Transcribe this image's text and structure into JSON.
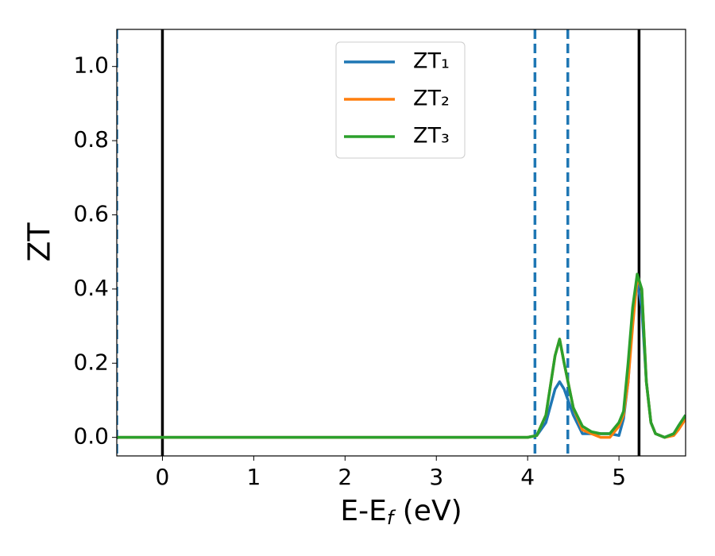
{
  "chart_data": {
    "type": "line",
    "xlabel": [
      "E-E",
      "f",
      " (eV)"
    ],
    "ylabel": "ZT",
    "xlim": [
      -0.5,
      5.73
    ],
    "ylim": [
      -0.05,
      1.1
    ],
    "xticks": [
      0,
      1,
      2,
      3,
      4,
      5
    ],
    "yticks": [
      {
        "value": 0,
        "label": "0.0"
      },
      {
        "value": 0.2,
        "label": "0.2"
      },
      {
        "value": 0.4,
        "label": "0.4"
      },
      {
        "value": 0.6,
        "label": "0.6"
      },
      {
        "value": 0.8,
        "label": "0.8"
      },
      {
        "value": 1.0,
        "label": "1.0"
      }
    ],
    "legend": "upper center",
    "vlines": [
      {
        "x": 0,
        "color": "#000000",
        "style": "solid"
      },
      {
        "x": 5.22,
        "color": "#000000",
        "style": "solid"
      },
      {
        "x": -0.5,
        "color": "#1f77b4",
        "style": "dashed"
      },
      {
        "x": 4.08,
        "color": "#1f77b4",
        "style": "dashed"
      },
      {
        "x": 4.44,
        "color": "#1f77b4",
        "style": "dashed"
      }
    ],
    "x": [
      -0.5,
      4.0,
      4.1,
      4.2,
      4.3,
      4.35,
      4.4,
      4.5,
      4.6,
      4.7,
      4.8,
      4.9,
      5.0,
      5.05,
      5.1,
      5.15,
      5.2,
      5.25,
      5.3,
      5.35,
      5.4,
      5.5,
      5.6,
      5.65,
      5.73
    ],
    "series": [
      {
        "name": "ZT₁",
        "color": "#1f77b4",
        "values": [
          0,
          0,
          0.005,
          0.04,
          0.13,
          0.15,
          0.13,
          0.06,
          0.01,
          0.01,
          0.01,
          0.01,
          0.005,
          0.05,
          0.15,
          0.32,
          0.42,
          0.35,
          0.15,
          0.04,
          0.01,
          0,
          0.01,
          0.03,
          0.06
        ]
      },
      {
        "name": "ZT₂",
        "color": "#ff7f0e",
        "values": [
          0,
          0,
          0.005,
          0.06,
          0.22,
          0.265,
          0.2,
          0.08,
          0.02,
          0.01,
          0,
          0,
          0.03,
          0.06,
          0.15,
          0.3,
          0.43,
          0.4,
          0.15,
          0.04,
          0.01,
          0,
          0.005,
          0.02,
          0.05
        ]
      },
      {
        "name": "ZT₃",
        "color": "#2ca02c",
        "values": [
          0,
          0,
          0.005,
          0.06,
          0.22,
          0.265,
          0.2,
          0.08,
          0.03,
          0.015,
          0.01,
          0.01,
          0.04,
          0.07,
          0.2,
          0.35,
          0.44,
          0.4,
          0.15,
          0.04,
          0.01,
          0,
          0.01,
          0.03,
          0.06
        ]
      }
    ]
  }
}
